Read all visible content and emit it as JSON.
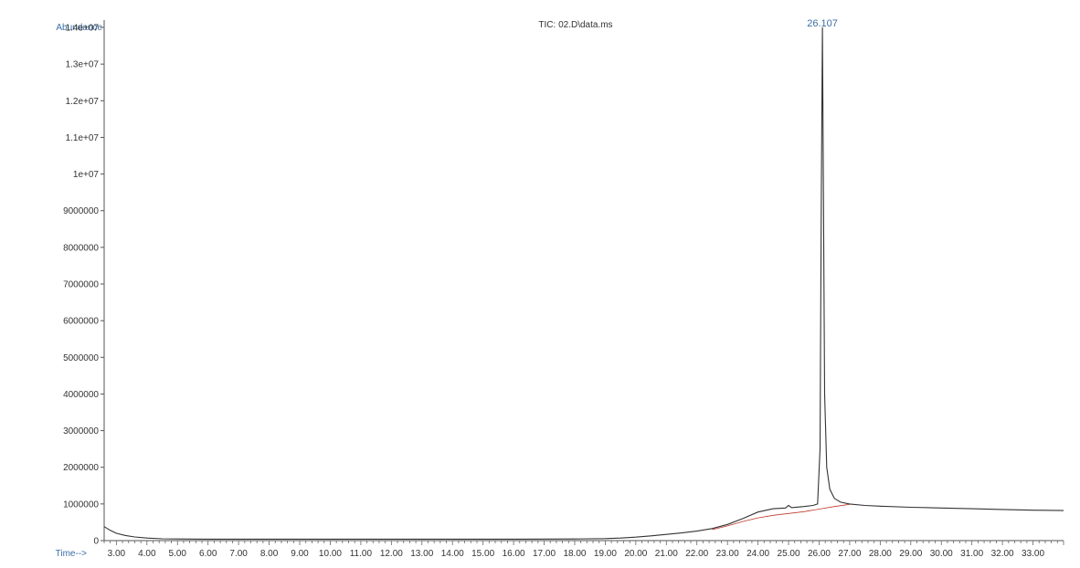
{
  "chart_data": {
    "type": "line",
    "title": "TIC: 02.D\\data.ms",
    "ylabel": "Abundance",
    "xlabel": "Time-->",
    "xlim": [
      2.6,
      34.0
    ],
    "ylim": [
      0,
      14200000
    ],
    "x_ticks": [
      3,
      4,
      5,
      6,
      7,
      8,
      9,
      10,
      11,
      12,
      13,
      14,
      15,
      16,
      17,
      18,
      19,
      20,
      21,
      22,
      23,
      24,
      25,
      26,
      27,
      28,
      29,
      30,
      31,
      32,
      33
    ],
    "x_tick_labels": [
      "3.00",
      "4.00",
      "5.00",
      "6.00",
      "7.00",
      "8.00",
      "9.00",
      "10.00",
      "11.00",
      "12.00",
      "13.00",
      "14.00",
      "15.00",
      "16.00",
      "17.00",
      "18.00",
      "19.00",
      "20.00",
      "21.00",
      "22.00",
      "23.00",
      "24.00",
      "25.00",
      "26.00",
      "27.00",
      "28.00",
      "29.00",
      "30.00",
      "31.00",
      "32.00",
      "33.00"
    ],
    "y_ticks": [
      0,
      1000000,
      2000000,
      3000000,
      4000000,
      5000000,
      6000000,
      7000000,
      8000000,
      9000000,
      10000000,
      11000000,
      12000000,
      13000000,
      14000000
    ],
    "y_tick_labels": [
      "0",
      "1000000",
      "2000000",
      "3000000",
      "4000000",
      "5000000",
      "6000000",
      "7000000",
      "8000000",
      "9000000",
      "1e+07",
      "1.1e+07",
      "1.2e+07",
      "1.3e+07",
      "1.4e+07"
    ],
    "grid": false,
    "series": [
      {
        "color": "#333333",
        "x": [
          2.6,
          2.8,
          3.0,
          3.3,
          3.6,
          4.0,
          4.5,
          5.0,
          6.0,
          8.0,
          10.0,
          12.0,
          14.0,
          16.0,
          18.0,
          19.0,
          19.5,
          20.0,
          20.5,
          21.0,
          21.5,
          22.0,
          22.5,
          23.0,
          23.5,
          24.0,
          24.5,
          24.9,
          25.0,
          25.1,
          25.5,
          25.8,
          25.95,
          26.03,
          26.07,
          26.107,
          26.14,
          26.18,
          26.25,
          26.35,
          26.5,
          26.7,
          27.0,
          27.5,
          28.0,
          29.0,
          30.0,
          31.0,
          32.0,
          33.0,
          34.0
        ],
        "y": [
          380000,
          280000,
          200000,
          140000,
          100000,
          70000,
          50000,
          45000,
          40000,
          40000,
          40000,
          40000,
          40000,
          40000,
          45000,
          55000,
          70000,
          95000,
          130000,
          170000,
          210000,
          260000,
          330000,
          440000,
          600000,
          780000,
          870000,
          890000,
          960000,
          900000,
          930000,
          960000,
          1000000,
          2500000,
          9000000,
          14000000,
          9500000,
          4000000,
          2000000,
          1400000,
          1150000,
          1050000,
          1000000,
          960000,
          940000,
          910000,
          890000,
          870000,
          850000,
          830000,
          820000
        ]
      },
      {
        "color": "#c0392b",
        "x": [
          22.5,
          23.0,
          23.5,
          24.0,
          24.5,
          25.0,
          25.5,
          26.0,
          26.5,
          27.0
        ],
        "y": [
          300000,
          400000,
          520000,
          620000,
          690000,
          740000,
          790000,
          860000,
          930000,
          990000
        ]
      }
    ],
    "annotations": [
      {
        "text": "26.107",
        "x": 26.107,
        "y": 14000000
      }
    ]
  }
}
